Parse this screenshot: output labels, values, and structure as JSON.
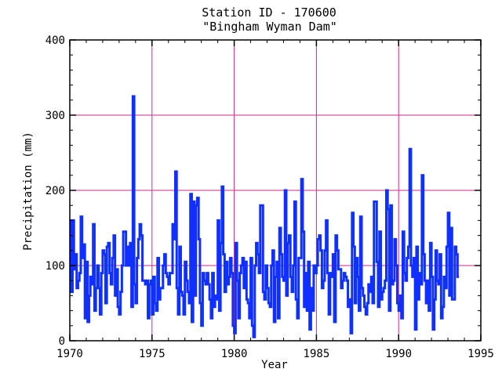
{
  "chart_data": {
    "type": "line",
    "title": "Station ID - 170600",
    "subtitle": "\"Bingham Wyman Dam\"",
    "xlabel": "Year",
    "ylabel": "Precipitation (mm)",
    "xlim": [
      1970,
      1995
    ],
    "ylim": [
      0,
      400
    ],
    "xticks": [
      "1970",
      "1975",
      "1980",
      "1985",
      "1990",
      "1995"
    ],
    "yticks": [
      "0",
      "100",
      "200",
      "300",
      "400"
    ],
    "grid": true,
    "colors": {
      "line": "#1030ff",
      "grid": "#cc2a88",
      "axes": "#000000"
    },
    "series": [
      {
        "start_year": 1970,
        "step_months": 1,
        "values": [
          160,
          65,
          160,
          95,
          115,
          70,
          80,
          90,
          165,
          110,
          128,
          30,
          105,
          25,
          60,
          85,
          75,
          155,
          40,
          70,
          100,
          70,
          35,
          90,
          120,
          115,
          50,
          125,
          130,
          90,
          75,
          110,
          140,
          60,
          95,
          45,
          35,
          65,
          100,
          145,
          145,
          100,
          125,
          100,
          130,
          45,
          325,
          75,
          50,
          110,
          135,
          155,
          140,
          80,
          80,
          75,
          80,
          30,
          75,
          80,
          35,
          85,
          50,
          40,
          110,
          55,
          70,
          70,
          100,
          115,
          90,
          85,
          75,
          90,
          90,
          155,
          135,
          225,
          70,
          35,
          125,
          65,
          60,
          35,
          105,
          80,
          65,
          50,
          195,
          25,
          185,
          60,
          180,
          190,
          135,
          50,
          20,
          90,
          80,
          75,
          90,
          75,
          55,
          30,
          90,
          45,
          60,
          55,
          160,
          40,
          130,
          205,
          115,
          65,
          105,
          75,
          85,
          110,
          90,
          20,
          10,
          130,
          80,
          30,
          90,
          100,
          110,
          70,
          105,
          55,
          50,
          30,
          110,
          20,
          5,
          100,
          130,
          115,
          90,
          180,
          180,
          65,
          55,
          100,
          70,
          50,
          45,
          100,
          120,
          25,
          85,
          105,
          30,
          150,
          115,
          85,
          80,
          200,
          60,
          130,
          140,
          85,
          65,
          100,
          185,
          55,
          30,
          110,
          110,
          215,
          145,
          45,
          90,
          40,
          105,
          15,
          70,
          40,
          100,
          90,
          100,
          135,
          140,
          120,
          70,
          80,
          120,
          160,
          90,
          35,
          90,
          85,
          115,
          25,
          140,
          120,
          95,
          95,
          70,
          80,
          90,
          85,
          80,
          45,
          55,
          10,
          170,
          125,
          50,
          110,
          85,
          40,
          165,
          70,
          60,
          45,
          35,
          50,
          75,
          65,
          85,
          50,
          185,
          185,
          105,
          45,
          145,
          55,
          65,
          70,
          80,
          200,
          175,
          40,
          180,
          75,
          80,
          135,
          100,
          50,
          40,
          60,
          30,
          145,
          90,
          80,
          110,
          125,
          255,
          100,
          85,
          110,
          15,
          125,
          55,
          90,
          75,
          220,
          115,
          80,
          50,
          80,
          40,
          130,
          85,
          15,
          55,
          120,
          80,
          75,
          115,
          30,
          45,
          85,
          70,
          125,
          170,
          60,
          150,
          55,
          55,
          125,
          115,
          85
        ]
      }
    ]
  }
}
